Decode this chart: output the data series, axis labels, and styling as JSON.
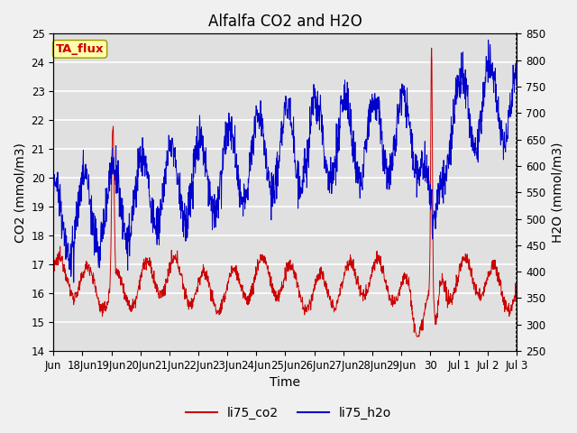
{
  "title": "Alfalfa CO2 and H2O",
  "xlabel": "Time",
  "ylabel_left": "CO2 (mmol/m3)",
  "ylabel_right": "H2O (mmol/m3)",
  "ylim_left": [
    14.0,
    25.0
  ],
  "ylim_right": [
    250,
    850
  ],
  "yticks_left": [
    14.0,
    15.0,
    16.0,
    17.0,
    18.0,
    19.0,
    20.0,
    21.0,
    22.0,
    23.0,
    24.0,
    25.0
  ],
  "yticks_right": [
    250,
    300,
    350,
    400,
    450,
    500,
    550,
    600,
    650,
    700,
    750,
    800,
    850
  ],
  "xtick_labels": [
    "Jun",
    "18Jun",
    "19Jun",
    "20Jun",
    "21Jun",
    "22Jun",
    "23Jun",
    "24Jun",
    "25Jun",
    "26Jun",
    "27Jun",
    "28Jun",
    "29Jun",
    "30",
    "Jul 1",
    "Jul 2",
    "Jul 3"
  ],
  "color_co2": "#cc0000",
  "color_h2o": "#0000cc",
  "legend_label_co2": "li75_co2",
  "legend_label_h2o": "li75_h2o",
  "tag_text": "TA_flux",
  "tag_facecolor": "#ffffaa",
  "tag_edgecolor": "#999900",
  "tag_textcolor": "#cc0000",
  "plot_bg_color": "#e0e0e0",
  "fig_bg_color": "#f0f0f0",
  "grid_color": "#ffffff",
  "title_fontsize": 12,
  "axis_label_fontsize": 10,
  "tick_fontsize": 8.5,
  "legend_fontsize": 10
}
